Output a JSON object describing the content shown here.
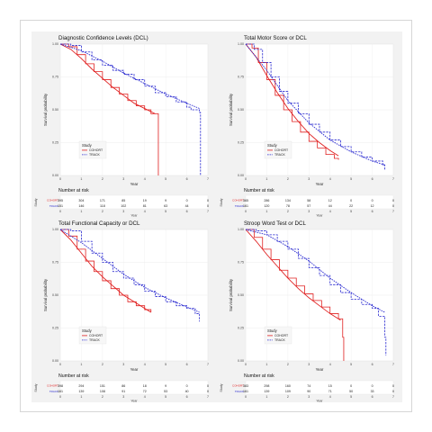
{
  "chart_data": [
    {
      "type": "line",
      "title": "Diagnostic Confidence Levels (DCL)",
      "ylabel": "Survival probability",
      "xlabel": "Year",
      "xlim": [
        0,
        7
      ],
      "ylim": [
        0,
        1
      ],
      "x_ticks": [
        "0",
        "1",
        "2",
        "3",
        "4",
        "5",
        "6",
        "7"
      ],
      "y_ticks": [
        "0.00",
        "0.25",
        "0.50",
        "0.75",
        "1.00"
      ],
      "legend": {
        "title": "Study",
        "placement": "bottom-left",
        "entries": [
          "COHORT",
          "TRACK"
        ]
      },
      "series": [
        {
          "name": "COHORT",
          "color": "#e02020",
          "kind": "km",
          "x": [
            0,
            0.4,
            0.8,
            1.2,
            1.6,
            2.0,
            2.4,
            2.8,
            3.2,
            3.6,
            4.0,
            4.3,
            4.6,
            4.65
          ],
          "y": [
            1.0,
            0.98,
            0.92,
            0.85,
            0.79,
            0.73,
            0.67,
            0.62,
            0.57,
            0.53,
            0.5,
            0.47,
            0.47,
            0.0
          ]
        },
        {
          "name": "COHORT fitted",
          "color": "#e02020",
          "kind": "smooth",
          "x": [
            0,
            0.5,
            1.0,
            1.5,
            2.0,
            2.5,
            3.0,
            3.5,
            4.0,
            4.5
          ],
          "y": [
            1.0,
            0.96,
            0.89,
            0.81,
            0.74,
            0.67,
            0.61,
            0.55,
            0.51,
            0.47
          ]
        },
        {
          "name": "TRACK",
          "color": "#2a2ad0",
          "kind": "km",
          "x": [
            0,
            0.5,
            1.0,
            1.5,
            2.0,
            2.5,
            3.0,
            3.5,
            4.0,
            4.5,
            5.0,
            5.5,
            6.0,
            6.2,
            6.6,
            6.65
          ],
          "y": [
            1.0,
            0.99,
            0.94,
            0.88,
            0.84,
            0.8,
            0.77,
            0.73,
            0.68,
            0.63,
            0.6,
            0.56,
            0.52,
            0.5,
            0.48,
            0.0
          ]
        },
        {
          "name": "TRACK fitted",
          "color": "#2a2ad0",
          "kind": "smooth",
          "x": [
            0,
            1,
            2,
            3,
            4,
            5,
            6,
            6.6
          ],
          "y": [
            1.0,
            0.95,
            0.87,
            0.78,
            0.7,
            0.62,
            0.55,
            0.51
          ]
        }
      ],
      "risk_table": {
        "title": "Number at risk",
        "ylabel": "Study",
        "xlabel": "Year",
        "x": [
          "0",
          "1",
          "2",
          "3",
          "4",
          "5",
          "6",
          "7"
        ],
        "rows": [
          {
            "label": "COHORT",
            "color": "#e02020",
            "values": [
              "395",
              "304",
              "171",
              "85",
              "19",
              "9",
              "0",
              "0"
            ]
          },
          {
            "label": "TRACK",
            "color": "#2a2ad0",
            "values": [
              "151",
              "146",
              "118",
              "102",
              "81",
              "63",
              "44",
              "0"
            ]
          }
        ]
      }
    },
    {
      "type": "line",
      "title": "Total Motor Score or DCL",
      "ylabel": "Survival probability",
      "xlabel": "Year",
      "xlim": [
        0,
        7
      ],
      "ylim": [
        0,
        1
      ],
      "x_ticks": [
        "0",
        "1",
        "2",
        "3",
        "4",
        "5",
        "6",
        "7"
      ],
      "y_ticks": [
        "0.00",
        "0.25",
        "0.50",
        "0.75",
        "1.00"
      ],
      "legend": {
        "title": "Study",
        "placement": "bottom-left",
        "entries": [
          "COHORT",
          "TRACK"
        ]
      },
      "series": [
        {
          "name": "COHORT",
          "color": "#e02020",
          "kind": "km",
          "x": [
            0,
            0.3,
            0.6,
            1.0,
            1.4,
            1.8,
            2.2,
            2.6,
            3.0,
            3.4,
            3.8,
            4.2,
            4.4
          ],
          "y": [
            1.0,
            0.97,
            0.86,
            0.73,
            0.61,
            0.5,
            0.41,
            0.33,
            0.26,
            0.21,
            0.16,
            0.13,
            0.12
          ]
        },
        {
          "name": "COHORT fitted",
          "color": "#e02020",
          "kind": "smooth",
          "x": [
            0,
            0.5,
            1.0,
            1.5,
            2.0,
            2.5,
            3.0,
            3.5,
            4.0,
            4.4
          ],
          "y": [
            1.0,
            0.9,
            0.76,
            0.63,
            0.51,
            0.41,
            0.32,
            0.25,
            0.19,
            0.15
          ]
        },
        {
          "name": "TRACK",
          "color": "#2a2ad0",
          "kind": "km",
          "x": [
            0,
            0.4,
            0.8,
            1.2,
            1.6,
            2.0,
            2.5,
            3.0,
            3.5,
            4.0,
            4.5,
            5.0,
            5.5,
            6.0,
            6.5,
            6.6
          ],
          "y": [
            1.0,
            0.96,
            0.86,
            0.75,
            0.64,
            0.55,
            0.47,
            0.39,
            0.33,
            0.27,
            0.22,
            0.18,
            0.14,
            0.11,
            0.08,
            0.04
          ]
        },
        {
          "name": "TRACK fitted",
          "color": "#2a2ad0",
          "kind": "smooth",
          "x": [
            0,
            1,
            2,
            3,
            4,
            5,
            6,
            6.6
          ],
          "y": [
            1.0,
            0.8,
            0.57,
            0.4,
            0.27,
            0.18,
            0.11,
            0.08
          ]
        }
      ],
      "risk_table": {
        "title": "Number at risk",
        "ylabel": "Study",
        "xlabel": "Year",
        "x": [
          "0",
          "1",
          "2",
          "3",
          "4",
          "5",
          "6",
          "7"
        ],
        "rows": [
          {
            "label": "COHORT",
            "color": "#e02020",
            "values": [
              "365",
              "286",
              "134",
              "58",
              "12",
              "0",
              "0",
              "0"
            ]
          },
          {
            "label": "TRACK",
            "color": "#2a2ad0",
            "values": [
              "161",
              "120",
              "78",
              "57",
              "44",
              "22",
              "12",
              "0"
            ]
          }
        ]
      }
    },
    {
      "type": "line",
      "title": "Total Functional Capacity or DCL",
      "ylabel": "Survival probability",
      "xlabel": "Year",
      "xlim": [
        0,
        7
      ],
      "ylim": [
        0,
        1
      ],
      "x_ticks": [
        "0",
        "1",
        "2",
        "3",
        "4",
        "5",
        "6",
        "7"
      ],
      "y_ticks": [
        "0.00",
        "0.25",
        "0.50",
        "0.75",
        "1.00"
      ],
      "legend": {
        "title": "Study",
        "placement": "bottom-left",
        "entries": [
          "COHORT",
          "TRACK"
        ]
      },
      "series": [
        {
          "name": "COHORT",
          "color": "#e02020",
          "kind": "km",
          "x": [
            0,
            0.4,
            0.8,
            1.2,
            1.6,
            2.0,
            2.4,
            2.8,
            3.2,
            3.6,
            4.0,
            4.3
          ],
          "y": [
            1.0,
            0.95,
            0.85,
            0.76,
            0.68,
            0.61,
            0.55,
            0.5,
            0.45,
            0.42,
            0.39,
            0.37
          ]
        },
        {
          "name": "COHORT fitted",
          "color": "#e02020",
          "kind": "smooth",
          "x": [
            0,
            0.5,
            1.0,
            1.5,
            2.0,
            2.5,
            3.0,
            3.5,
            4.0,
            4.3
          ],
          "y": [
            1.0,
            0.92,
            0.82,
            0.72,
            0.64,
            0.57,
            0.5,
            0.45,
            0.4,
            0.37
          ]
        },
        {
          "name": "TRACK",
          "color": "#2a2ad0",
          "kind": "km",
          "x": [
            0,
            0.5,
            1.0,
            1.5,
            2.0,
            2.5,
            3.0,
            3.5,
            4.0,
            4.5,
            5.0,
            5.5,
            6.0,
            6.4,
            6.6
          ],
          "y": [
            1.0,
            0.99,
            0.91,
            0.82,
            0.75,
            0.68,
            0.63,
            0.58,
            0.53,
            0.49,
            0.45,
            0.42,
            0.4,
            0.36,
            0.3
          ]
        },
        {
          "name": "TRACK fitted",
          "color": "#2a2ad0",
          "kind": "smooth",
          "x": [
            0,
            1,
            2,
            3,
            4,
            5,
            6,
            6.6
          ],
          "y": [
            1.0,
            0.9,
            0.78,
            0.66,
            0.56,
            0.48,
            0.41,
            0.37
          ]
        }
      ],
      "risk_table": {
        "title": "Number at risk",
        "ylabel": "Study",
        "xlabel": "Year",
        "x": [
          "0",
          "1",
          "2",
          "3",
          "4",
          "5",
          "6",
          "7"
        ],
        "rows": [
          {
            "label": "COHORT",
            "color": "#e02020",
            "values": [
              "398",
              "294",
              "151",
              "86",
              "18",
              "9",
              "0",
              "0"
            ]
          },
          {
            "label": "TRACK",
            "color": "#2a2ad0",
            "values": [
              "161",
              "139",
              "108",
              "91",
              "72",
              "53",
              "40",
              "0"
            ]
          }
        ]
      }
    },
    {
      "type": "line",
      "title": "Stroop Word Test or DCL",
      "ylabel": "Survival probability",
      "xlabel": "Year",
      "xlim": [
        0,
        7
      ],
      "ylim": [
        0,
        1
      ],
      "x_ticks": [
        "0",
        "1",
        "2",
        "3",
        "4",
        "5",
        "6",
        "7"
      ],
      "y_ticks": [
        "0.00",
        "0.25",
        "0.50",
        "0.75",
        "1.00"
      ],
      "legend": {
        "title": "Study",
        "placement": "bottom-left",
        "entries": [
          "COHORT",
          "TRACK"
        ]
      },
      "series": [
        {
          "name": "COHORT",
          "color": "#e02020",
          "kind": "km",
          "x": [
            0,
            0.4,
            0.8,
            1.2,
            1.6,
            2.0,
            2.4,
            2.8,
            3.2,
            3.6,
            4.0,
            4.4,
            4.6,
            4.65
          ],
          "y": [
            1.0,
            0.94,
            0.85,
            0.77,
            0.69,
            0.63,
            0.57,
            0.51,
            0.46,
            0.41,
            0.36,
            0.32,
            0.18,
            0.0
          ]
        },
        {
          "name": "COHORT fitted",
          "color": "#e02020",
          "kind": "smooth",
          "x": [
            0,
            0.5,
            1.0,
            1.5,
            2.0,
            2.5,
            3.0,
            3.5,
            4.0,
            4.5
          ],
          "y": [
            1.0,
            0.91,
            0.81,
            0.72,
            0.63,
            0.55,
            0.48,
            0.42,
            0.36,
            0.31
          ]
        },
        {
          "name": "TRACK",
          "color": "#2a2ad0",
          "kind": "km",
          "x": [
            0,
            0.5,
            1.0,
            1.5,
            2.0,
            2.5,
            3.0,
            3.5,
            4.0,
            4.5,
            5.0,
            5.5,
            6.0,
            6.3,
            6.6,
            6.65
          ],
          "y": [
            1.0,
            0.99,
            0.96,
            0.91,
            0.85,
            0.78,
            0.71,
            0.65,
            0.58,
            0.52,
            0.47,
            0.43,
            0.4,
            0.34,
            0.18,
            0.04
          ]
        },
        {
          "name": "TRACK fitted",
          "color": "#2a2ad0",
          "kind": "smooth",
          "x": [
            0,
            1,
            2,
            3,
            4,
            5,
            6,
            6.6
          ],
          "y": [
            1.0,
            0.96,
            0.87,
            0.76,
            0.63,
            0.52,
            0.42,
            0.37
          ]
        }
      ],
      "risk_table": {
        "title": "Number at risk",
        "ylabel": "Study",
        "xlabel": "Year",
        "x": [
          "0",
          "1",
          "2",
          "3",
          "4",
          "5",
          "6",
          "7"
        ],
        "rows": [
          {
            "label": "COHORT",
            "color": "#e02020",
            "values": [
              "383",
              "298",
              "160",
              "74",
              "15",
              "0",
              "0",
              "0"
            ]
          },
          {
            "label": "TRACK",
            "color": "#2a2ad0",
            "values": [
              "161",
              "139",
              "109",
              "90",
              "71",
              "50",
              "33",
              "0"
            ]
          }
        ]
      }
    }
  ]
}
